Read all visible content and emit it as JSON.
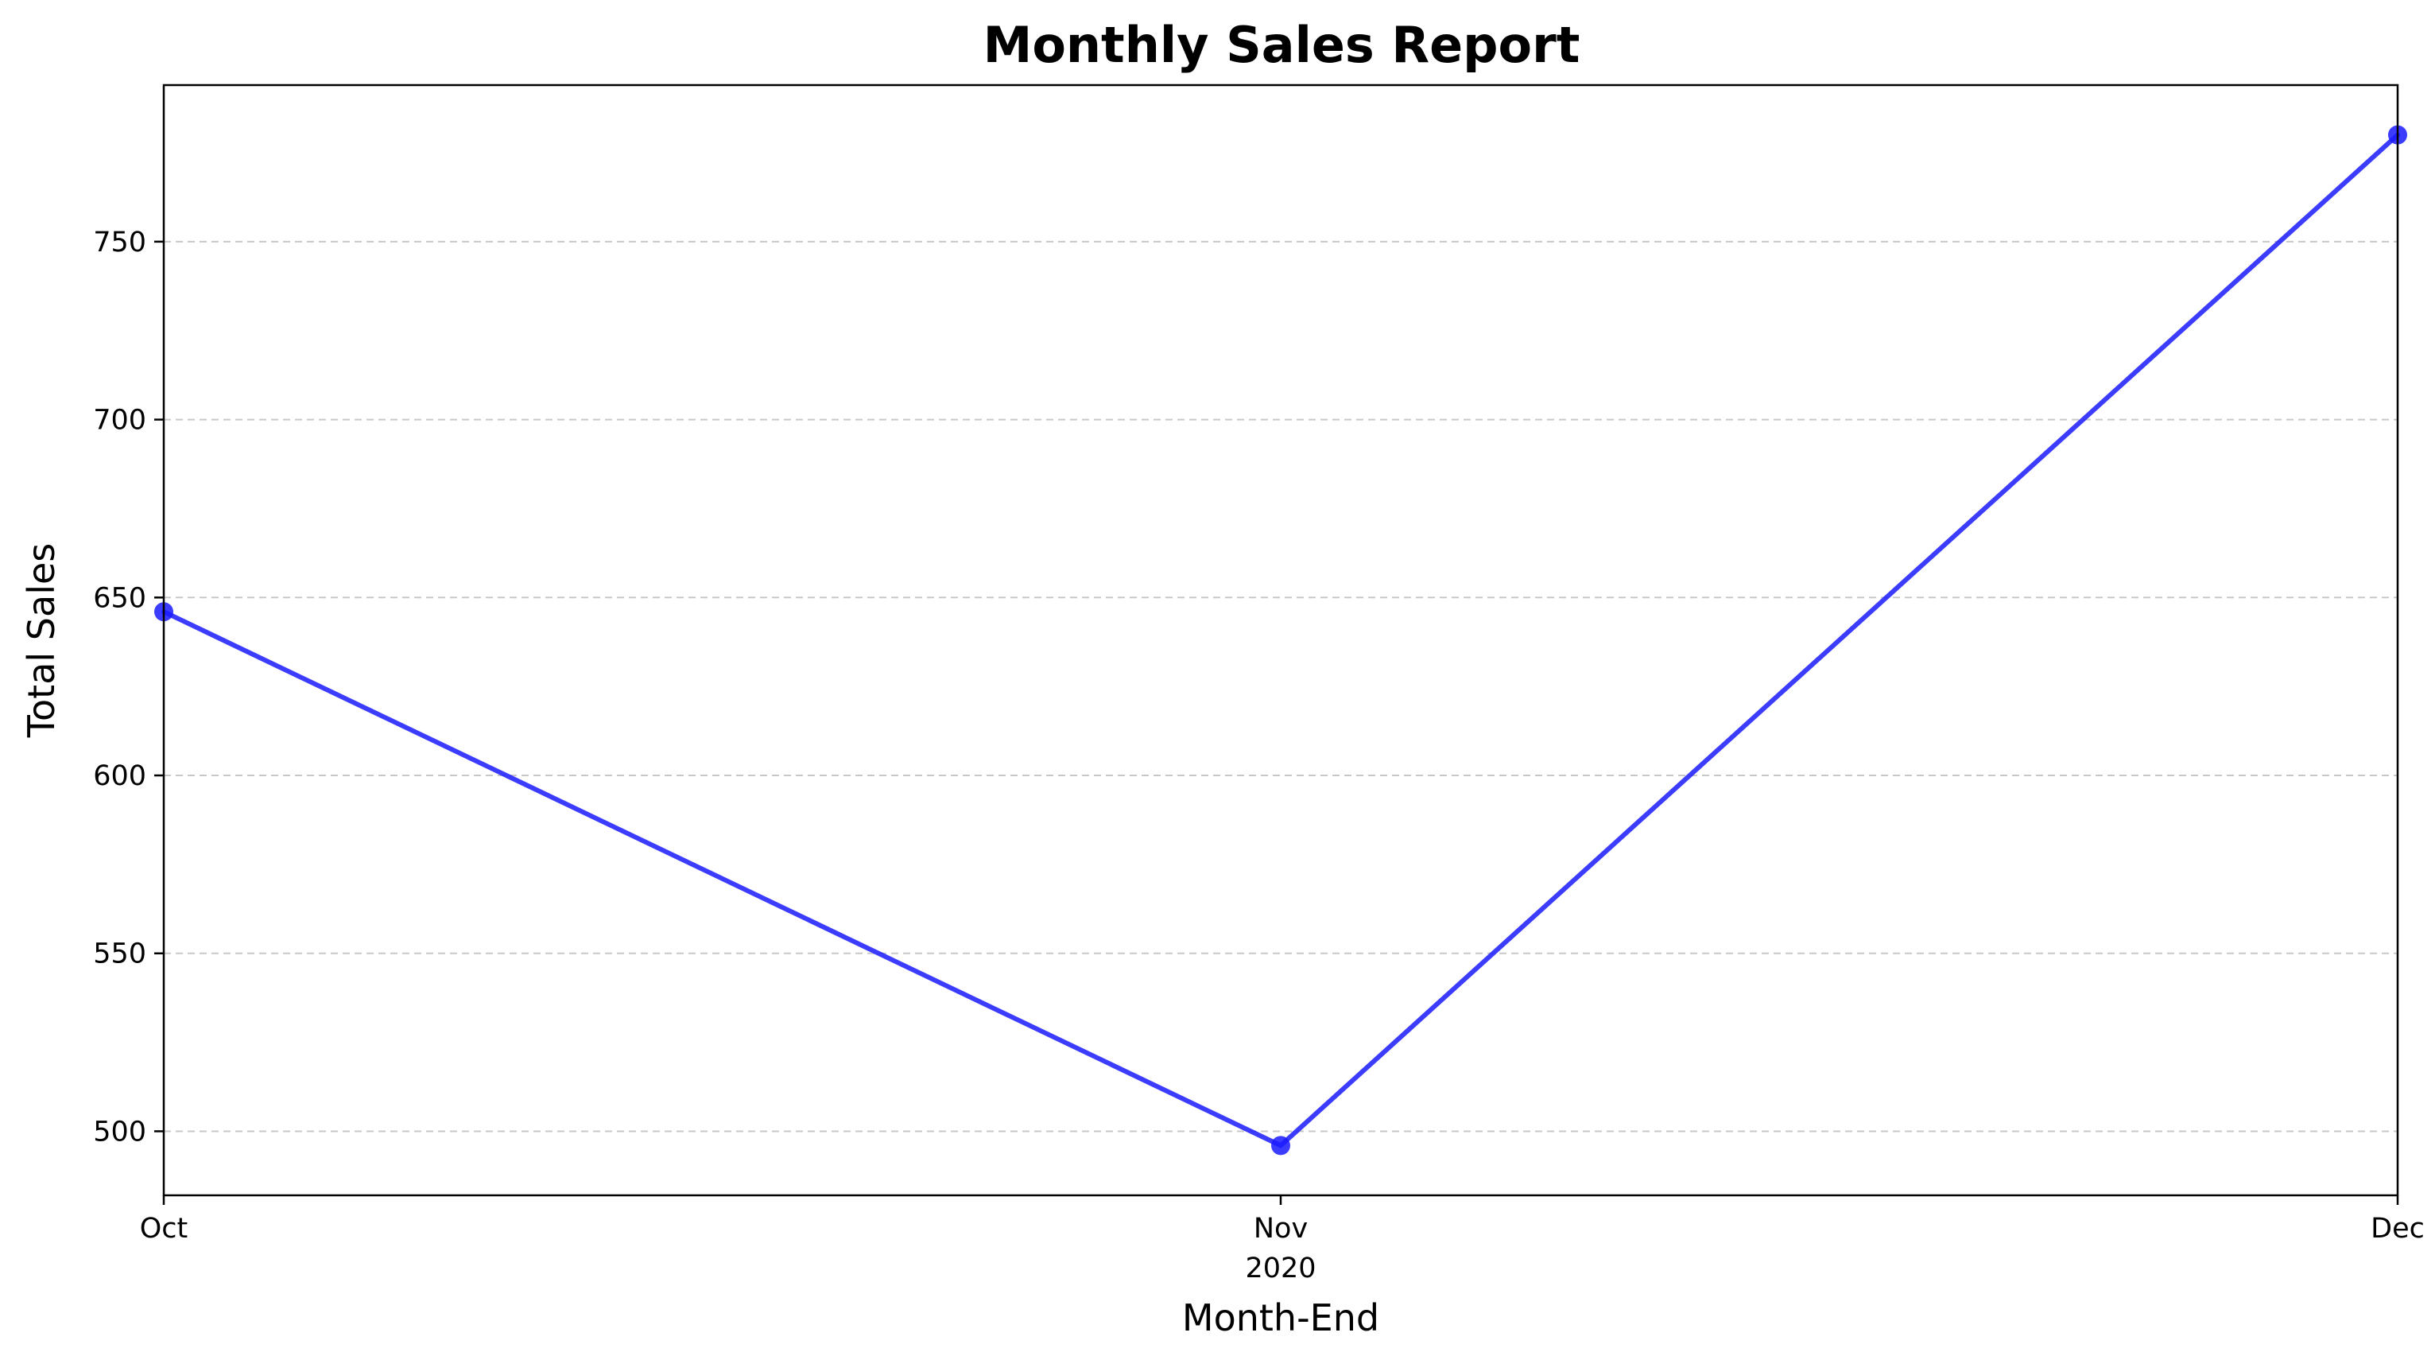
{
  "chart_data": {
    "type": "line",
    "title": "Monthly Sales Report",
    "xlabel": "Month-End",
    "ylabel": "Total Sales",
    "x": [
      "2020-10-31",
      "2020-11-30",
      "2020-12-31"
    ],
    "x_tick_labels": [
      "Oct",
      "Nov",
      "Dec"
    ],
    "x_tick_year": "2020",
    "series": [
      {
        "values": [
          646,
          496,
          780
        ],
        "color": "#1a1aff"
      }
    ],
    "y_ticks": [
      500,
      550,
      600,
      650,
      700,
      750
    ],
    "ylim": [
      482,
      794
    ],
    "grid": "horizontal-dashed",
    "legend": "none"
  }
}
